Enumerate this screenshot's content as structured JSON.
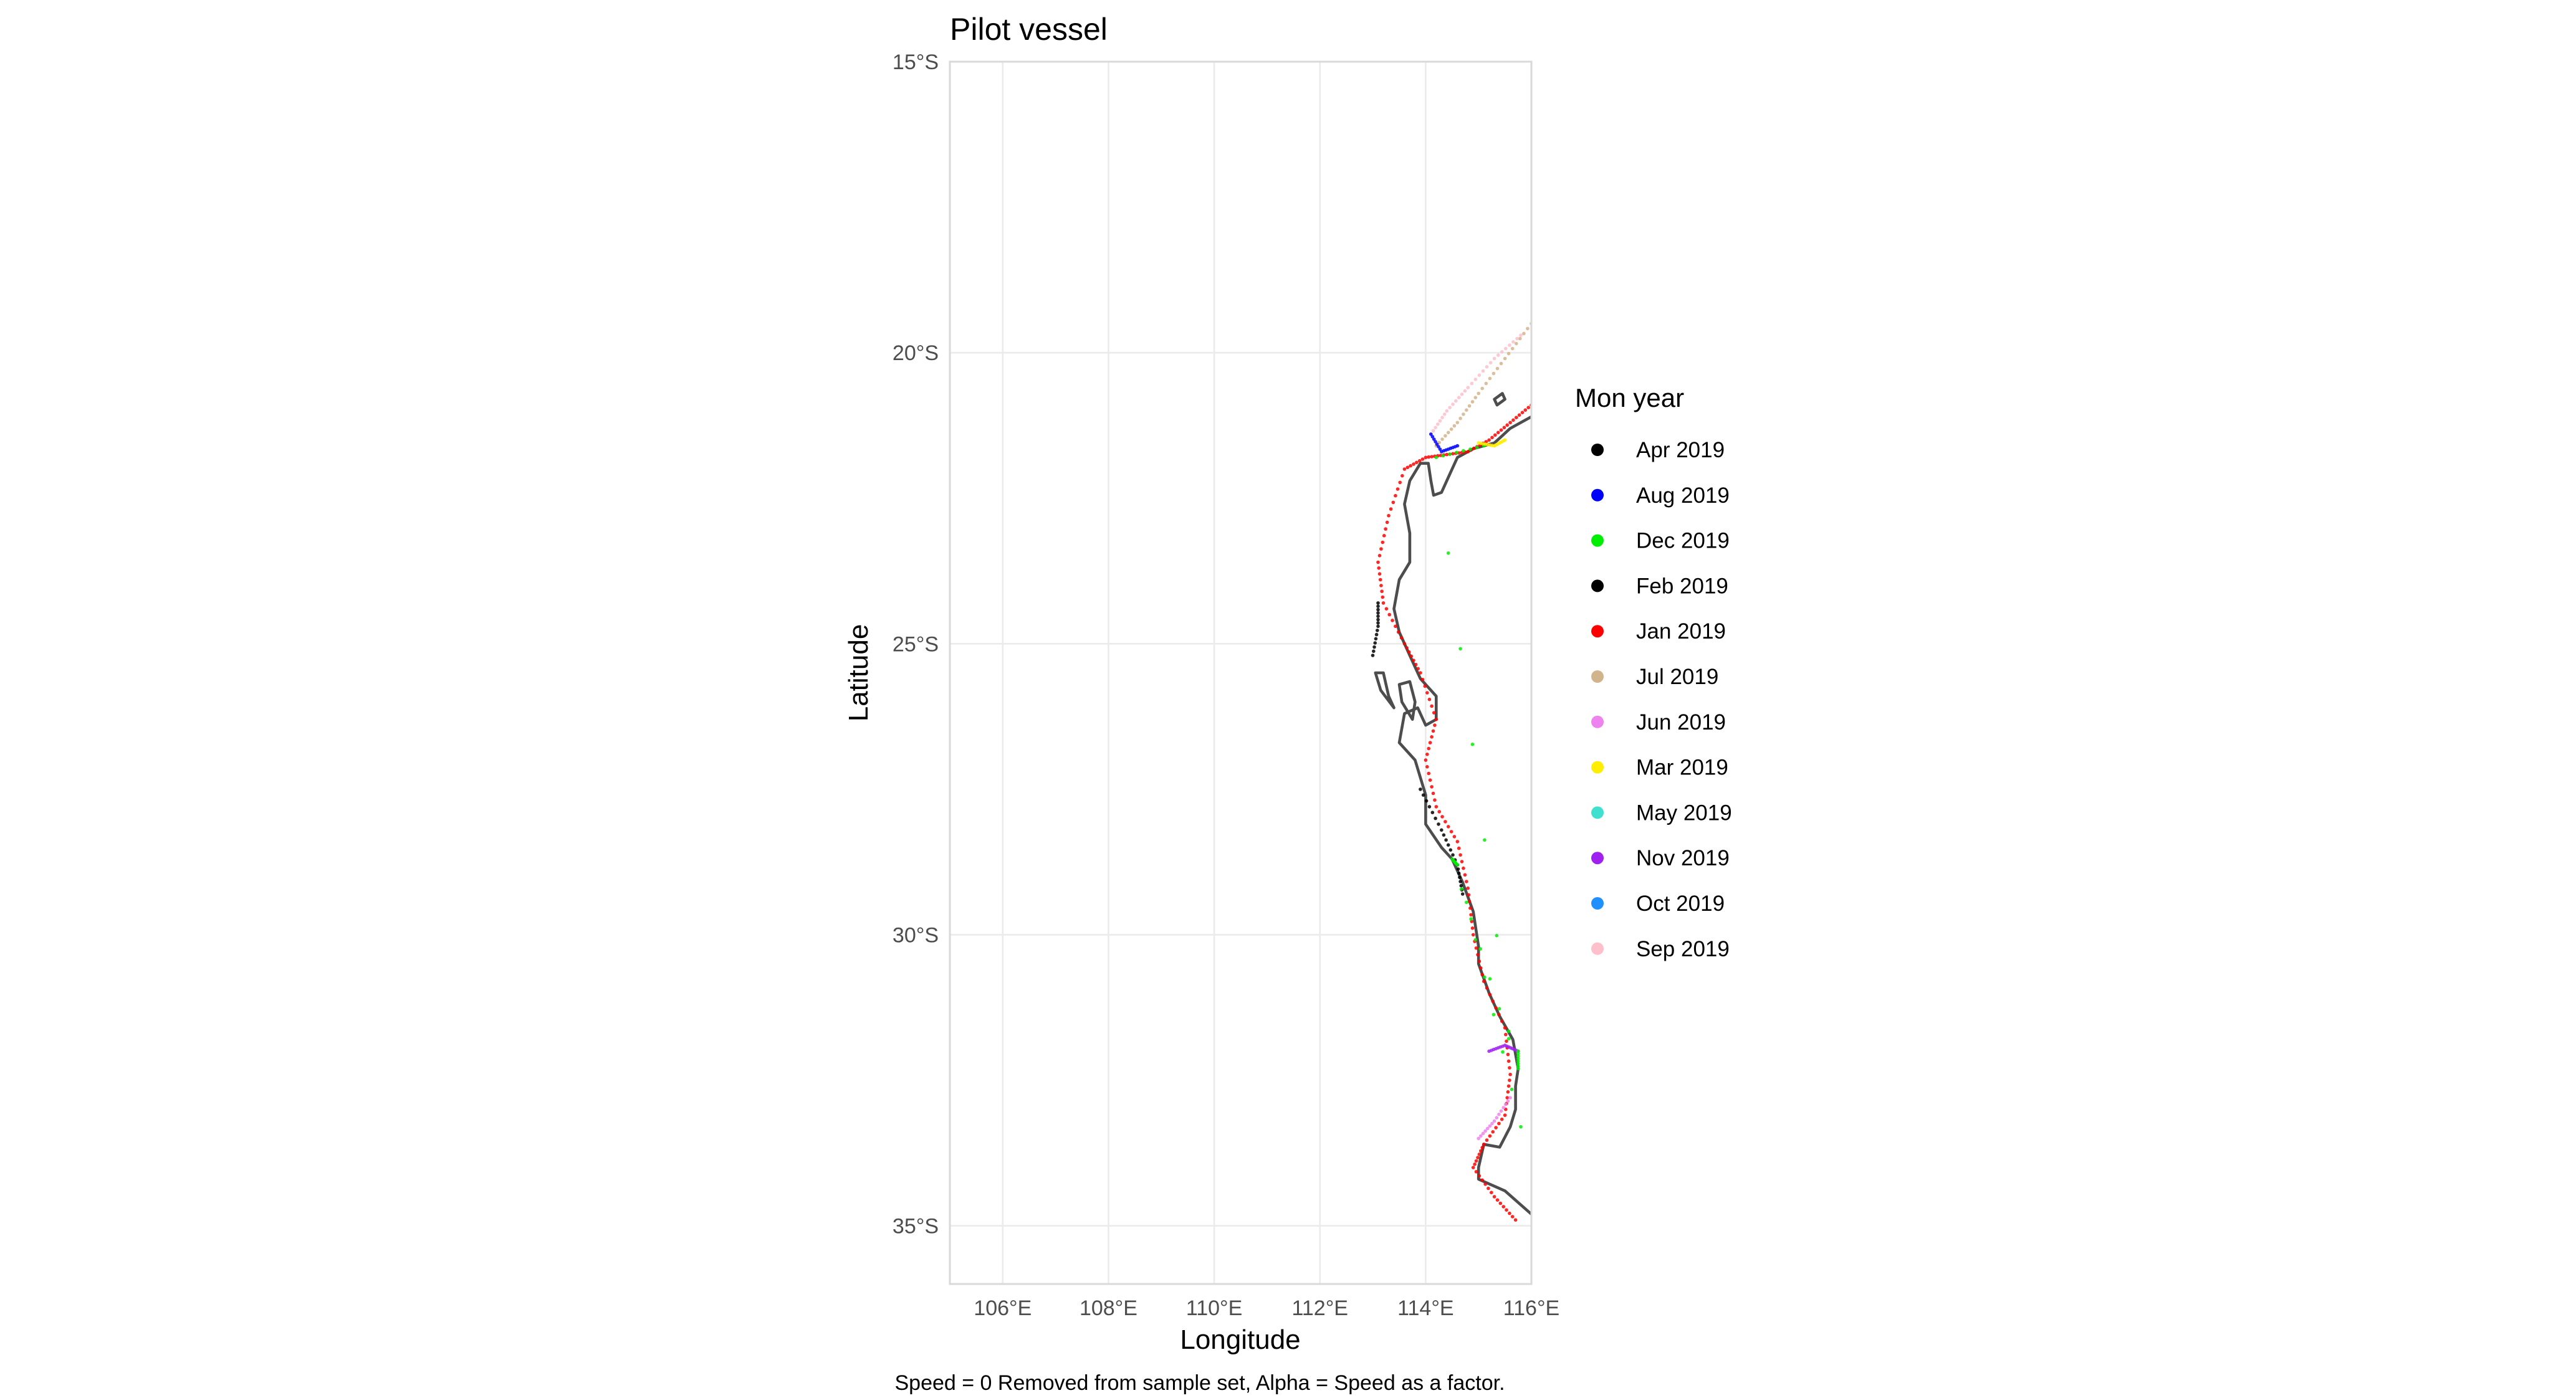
{
  "chart_data": {
    "type": "map",
    "title": "Pilot vessel",
    "xlabel": "Longitude",
    "ylabel": "Latitude",
    "caption": "Speed = 0 Removed from sample set, Alpha = Speed as a factor.",
    "xlim": [
      105,
      116
    ],
    "ylim": [
      -36,
      -15
    ],
    "x_ticks": [
      {
        "value": 106,
        "label": "106°E"
      },
      {
        "value": 108,
        "label": "108°E"
      },
      {
        "value": 110,
        "label": "110°E"
      },
      {
        "value": 112,
        "label": "112°E"
      },
      {
        "value": 114,
        "label": "114°E"
      },
      {
        "value": 116,
        "label": "116°E"
      }
    ],
    "y_ticks": [
      {
        "value": -15,
        "label": "15°S"
      },
      {
        "value": -20,
        "label": "20°S"
      },
      {
        "value": -25,
        "label": "25°S"
      },
      {
        "value": -30,
        "label": "30°S"
      },
      {
        "value": -35,
        "label": "35°S"
      }
    ],
    "grid": true,
    "legend": {
      "title": "Mon year",
      "placement": "right",
      "entries": [
        {
          "label": "Apr 2019",
          "color": "#000000"
        },
        {
          "label": "Aug 2019",
          "color": "#0000ff"
        },
        {
          "label": "Dec 2019",
          "color": "#00ee00"
        },
        {
          "label": "Feb 2019",
          "color": "#000000"
        },
        {
          "label": "Jan 2019",
          "color": "#ff0000"
        },
        {
          "label": "Jul 2019",
          "color": "#d2b48c"
        },
        {
          "label": "Jun 2019",
          "color": "#ee82ee"
        },
        {
          "label": "Mar 2019",
          "color": "#ffee00"
        },
        {
          "label": "May 2019",
          "color": "#40e0d0"
        },
        {
          "label": "Nov 2019",
          "color": "#a020f0"
        },
        {
          "label": "Oct 2019",
          "color": "#1e90ff"
        },
        {
          "label": "Sep 2019",
          "color": "#ffc0cb"
        }
      ]
    },
    "coastline": [
      [
        [
          116,
          -21.1
        ],
        [
          115.6,
          -21.3
        ],
        [
          115.3,
          -21.55
        ],
        [
          114.9,
          -21.65
        ],
        [
          114.6,
          -21.8
        ],
        [
          114.45,
          -22.1
        ],
        [
          114.3,
          -22.4
        ],
        [
          114.15,
          -22.45
        ],
        [
          114.1,
          -22.2
        ],
        [
          114.05,
          -21.9
        ],
        [
          113.9,
          -21.9
        ],
        [
          113.7,
          -22.2
        ],
        [
          113.6,
          -22.6
        ],
        [
          113.7,
          -23.1
        ],
        [
          113.7,
          -23.6
        ],
        [
          113.5,
          -23.9
        ],
        [
          113.4,
          -24.4
        ],
        [
          113.5,
          -24.8
        ],
        [
          113.7,
          -25.2
        ],
        [
          113.9,
          -25.6
        ],
        [
          114.2,
          -25.9
        ],
        [
          114.2,
          -26.3
        ],
        [
          114.0,
          -26.4
        ],
        [
          113.85,
          -26.1
        ],
        [
          113.6,
          -26.2
        ],
        [
          113.5,
          -26.7
        ],
        [
          113.8,
          -27.0
        ],
        [
          114.0,
          -27.6
        ],
        [
          114.0,
          -28.1
        ],
        [
          114.3,
          -28.5
        ],
        [
          114.5,
          -28.7
        ],
        [
          114.7,
          -29.1
        ],
        [
          114.9,
          -29.6
        ],
        [
          115.0,
          -30.2
        ],
        [
          115.0,
          -30.5
        ],
        [
          115.2,
          -31.0
        ],
        [
          115.4,
          -31.4
        ],
        [
          115.65,
          -31.8
        ],
        [
          115.75,
          -32.3
        ],
        [
          115.7,
          -32.6
        ],
        [
          115.7,
          -33.0
        ],
        [
          115.6,
          -33.3
        ],
        [
          115.4,
          -33.65
        ],
        [
          115.1,
          -33.6
        ],
        [
          115.0,
          -34.0
        ],
        [
          115.0,
          -34.2
        ],
        [
          115.5,
          -34.4
        ],
        [
          116,
          -34.8
        ]
      ],
      [
        [
          113.05,
          -25.5
        ],
        [
          113.2,
          -25.5
        ],
        [
          113.3,
          -25.9
        ],
        [
          113.4,
          -26.1
        ],
        [
          113.15,
          -25.8
        ],
        [
          113.05,
          -25.5
        ]
      ],
      [
        [
          113.5,
          -25.7
        ],
        [
          113.7,
          -25.65
        ],
        [
          113.8,
          -26.0
        ],
        [
          113.75,
          -26.3
        ],
        [
          113.55,
          -26.0
        ],
        [
          113.5,
          -25.7
        ]
      ],
      [
        [
          115.3,
          -20.8
        ],
        [
          115.45,
          -20.7
        ],
        [
          115.5,
          -20.8
        ],
        [
          115.35,
          -20.9
        ],
        [
          115.3,
          -20.8
        ]
      ]
    ],
    "tracks": [
      {
        "name": "Jan 2019",
        "color": "#ff0000",
        "points": [
          [
            116,
            -20.9
          ],
          [
            115.6,
            -21.2
          ],
          [
            115.2,
            -21.5
          ],
          [
            114.8,
            -21.7
          ],
          [
            114.4,
            -21.75
          ],
          [
            114.0,
            -21.8
          ],
          [
            113.6,
            -22.0
          ],
          [
            113.3,
            -22.8
          ],
          [
            113.1,
            -23.6
          ],
          [
            113.2,
            -24.3
          ],
          [
            113.6,
            -25.0
          ],
          [
            113.9,
            -25.5
          ],
          [
            114.2,
            -26.3
          ],
          [
            114.0,
            -27.0
          ],
          [
            114.2,
            -27.8
          ],
          [
            114.6,
            -28.4
          ],
          [
            114.8,
            -29.2
          ],
          [
            114.9,
            -30.0
          ],
          [
            115.1,
            -30.8
          ],
          [
            115.5,
            -31.6
          ],
          [
            115.6,
            -32.4
          ],
          [
            115.5,
            -33.1
          ],
          [
            115.1,
            -33.6
          ],
          [
            114.9,
            -34.0
          ],
          [
            115.3,
            -34.5
          ],
          [
            115.7,
            -34.9
          ]
        ]
      },
      {
        "name": "Feb 2019",
        "color": "#000000",
        "points": [
          [
            113.9,
            -27.5
          ],
          [
            114.3,
            -28.2
          ],
          [
            114.6,
            -28.8
          ],
          [
            114.7,
            -29.3
          ]
        ]
      },
      {
        "name": "Apr 2019",
        "color": "#000000",
        "points": [
          [
            113.0,
            -25.2
          ],
          [
            113.1,
            -24.7
          ],
          [
            113.1,
            -24.3
          ]
        ]
      },
      {
        "name": "Jul 2019",
        "color": "#d2b48c",
        "points": [
          [
            116,
            -19.5
          ],
          [
            115.5,
            -20.1
          ],
          [
            115.0,
            -20.7
          ],
          [
            114.6,
            -21.2
          ],
          [
            114.2,
            -21.6
          ]
        ]
      },
      {
        "name": "Sep 2019",
        "color": "#ffc0cb",
        "points": [
          [
            115.8,
            -19.7
          ],
          [
            115.3,
            -20.1
          ],
          [
            114.8,
            -20.6
          ],
          [
            114.4,
            -21.0
          ],
          [
            114.1,
            -21.4
          ]
        ]
      },
      {
        "name": "Jun 2019",
        "color": "#ee82ee",
        "points": [
          [
            115.0,
            -33.5
          ],
          [
            115.3,
            -33.2
          ],
          [
            115.6,
            -32.8
          ]
        ]
      },
      {
        "name": "Aug 2019",
        "color": "#0000ff",
        "points": [
          [
            114.1,
            -21.4
          ],
          [
            114.3,
            -21.7
          ],
          [
            114.6,
            -21.6
          ]
        ]
      },
      {
        "name": "Nov 2019",
        "color": "#a020f0",
        "points": [
          [
            115.2,
            -32.0
          ],
          [
            115.5,
            -31.9
          ],
          [
            115.75,
            -32.0
          ]
        ]
      },
      {
        "name": "Dec 2019",
        "color": "#00ee00",
        "points": [
          [
            115.75,
            -32.0
          ],
          [
            115.75,
            -32.3
          ],
          [
            114.5,
            -28.7
          ],
          [
            114.6,
            -28.8
          ],
          [
            115.8,
            -33.3
          ],
          [
            114.2,
            -21.8
          ],
          [
            115.1,
            -21.6
          ]
        ]
      },
      {
        "name": "Mar 2019",
        "color": "#ffee00",
        "points": [
          [
            115.0,
            -21.55
          ],
          [
            115.3,
            -21.6
          ],
          [
            115.5,
            -21.5
          ]
        ]
      }
    ]
  }
}
